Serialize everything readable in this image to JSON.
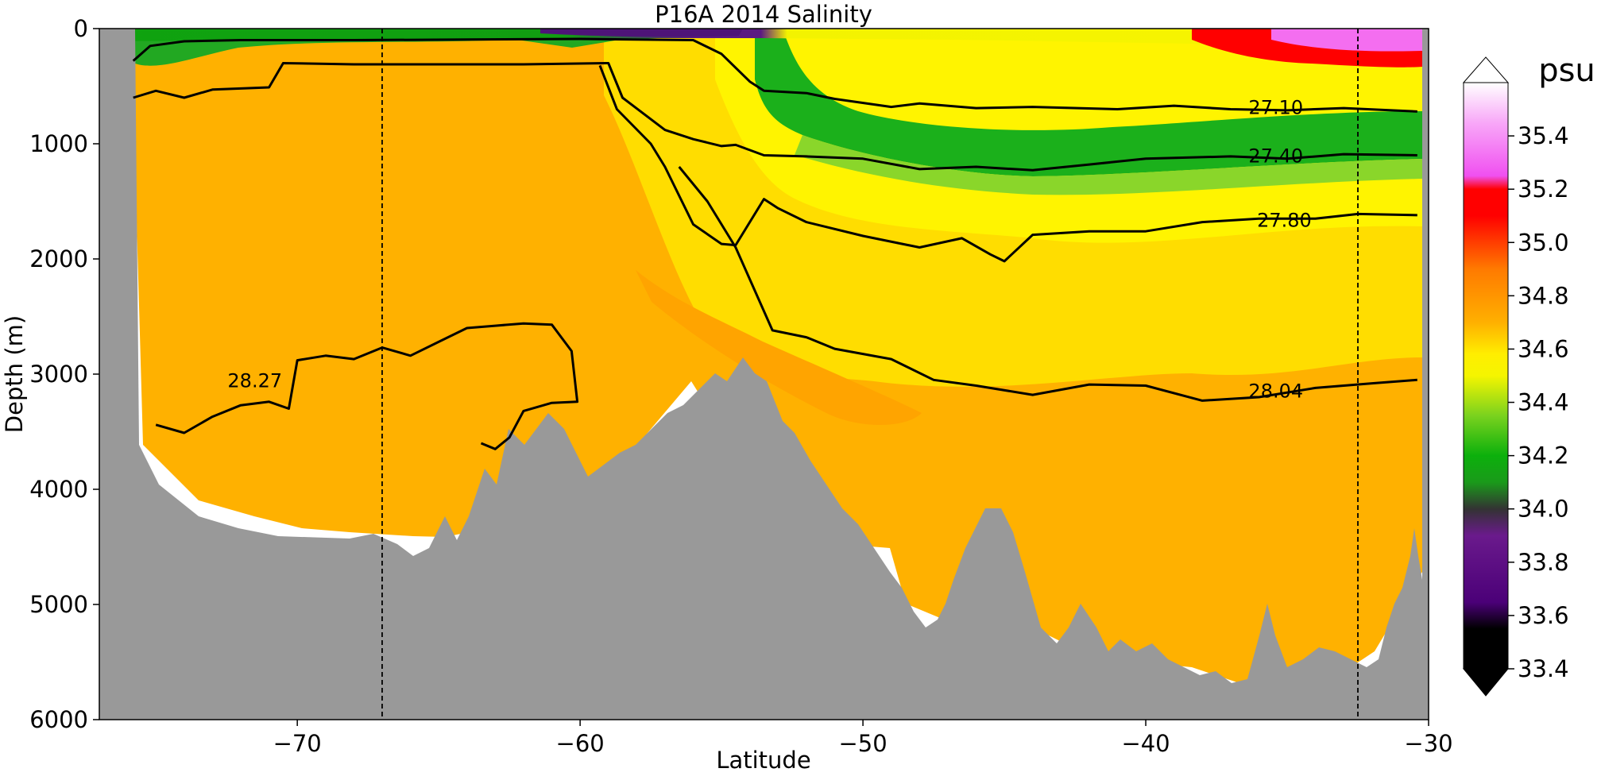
{
  "chart_data": {
    "type": "contourf",
    "title": "P16A 2014 Salinity",
    "xlabel": "Latitude",
    "ylabel": "Depth (m)",
    "xlim": [
      -77,
      -30
    ],
    "ylim": [
      6000,
      0
    ],
    "xticks": [
      -70,
      -60,
      -50,
      -40,
      -30
    ],
    "xtick_labels": [
      "−70",
      "−60",
      "−50",
      "−40",
      "−30"
    ],
    "yticks": [
      0,
      1000,
      2000,
      3000,
      4000,
      5000,
      6000
    ],
    "ytick_labels": [
      "0",
      "1000",
      "2000",
      "3000",
      "4000",
      "5000",
      "6000"
    ],
    "vertical_markers": [
      -67.0,
      -32.5
    ],
    "colorbar": {
      "label": "psu",
      "range": [
        33.4,
        35.6
      ],
      "ticks": [
        33.4,
        33.6,
        33.8,
        34.0,
        34.2,
        34.4,
        34.6,
        34.8,
        35.0,
        35.2,
        35.4
      ],
      "tick_labels": [
        "33.4",
        "33.6",
        "33.8",
        "34.0",
        "34.2",
        "34.4",
        "34.6",
        "34.8",
        "35.0",
        "35.2",
        "35.4"
      ],
      "stops": [
        {
          "v": 33.4,
          "color": "#000000"
        },
        {
          "v": 33.55,
          "color": "#000000"
        },
        {
          "v": 33.65,
          "color": "#4b0078"
        },
        {
          "v": 33.9,
          "color": "#6a1a8c"
        },
        {
          "v": 34.0,
          "color": "#333333"
        },
        {
          "v": 34.1,
          "color": "#1a9a1a"
        },
        {
          "v": 34.2,
          "color": "#0cb00c"
        },
        {
          "v": 34.35,
          "color": "#7ad21e"
        },
        {
          "v": 34.5,
          "color": "#f5f500"
        },
        {
          "v": 34.58,
          "color": "#ffee00"
        },
        {
          "v": 34.7,
          "color": "#ffb000"
        },
        {
          "v": 34.9,
          "color": "#ff7a00"
        },
        {
          "v": 35.1,
          "color": "#ff0000"
        },
        {
          "v": 35.2,
          "color": "#ff0000"
        },
        {
          "v": 35.25,
          "color": "#f050f0"
        },
        {
          "v": 35.45,
          "color": "#f8a8f8"
        },
        {
          "v": 35.6,
          "color": "#ffffff"
        }
      ]
    },
    "contours": [
      {
        "level": "27.10",
        "points": [
          [
            -75.8,
            280
          ],
          [
            -75.2,
            150
          ],
          [
            -74,
            110
          ],
          [
            -72,
            100
          ],
          [
            -68,
            100
          ],
          [
            -64,
            95
          ],
          [
            -60,
            90
          ],
          [
            -56,
            100
          ],
          [
            -55,
            220
          ],
          [
            -54,
            460
          ],
          [
            -53.5,
            540
          ],
          [
            -52,
            560
          ],
          [
            -51,
            610
          ],
          [
            -49,
            680
          ],
          [
            -48,
            650
          ],
          [
            -46,
            690
          ],
          [
            -44,
            680
          ],
          [
            -41,
            700
          ],
          [
            -39,
            670
          ],
          [
            -37,
            700
          ],
          [
            -35,
            710
          ],
          [
            -33,
            690
          ],
          [
            -30.4,
            720
          ]
        ],
        "label_at": [
          -35.4,
          680
        ]
      },
      {
        "level": "27.40",
        "points": [
          [
            -75.8,
            600
          ],
          [
            -75,
            540
          ],
          [
            -74,
            600
          ],
          [
            -73,
            530
          ],
          [
            -71,
            510
          ],
          [
            -70.5,
            300
          ],
          [
            -68,
            310
          ],
          [
            -66,
            310
          ],
          [
            -62,
            310
          ],
          [
            -59,
            300
          ],
          [
            -58.5,
            600
          ],
          [
            -57,
            880
          ],
          [
            -56,
            960
          ],
          [
            -55,
            1020
          ],
          [
            -54.5,
            1010
          ],
          [
            -53.5,
            1100
          ],
          [
            -52,
            1110
          ],
          [
            -50,
            1130
          ],
          [
            -48,
            1220
          ],
          [
            -46,
            1200
          ],
          [
            -44,
            1230
          ],
          [
            -42,
            1180
          ],
          [
            -40,
            1130
          ],
          [
            -37,
            1110
          ],
          [
            -35,
            1130
          ],
          [
            -33,
            1090
          ],
          [
            -30.4,
            1100
          ]
        ],
        "label_at": [
          -35.4,
          1100
        ]
      },
      {
        "level": "27.80",
        "points": [
          [
            -59.3,
            320
          ],
          [
            -58.7,
            700
          ],
          [
            -57.5,
            1000
          ],
          [
            -57,
            1200
          ],
          [
            -56,
            1700
          ],
          [
            -55,
            1870
          ],
          [
            -54.5,
            1880
          ],
          [
            -53.5,
            1480
          ],
          [
            -53,
            1560
          ],
          [
            -52,
            1680
          ],
          [
            -50,
            1800
          ],
          [
            -48,
            1900
          ],
          [
            -46.5,
            1820
          ],
          [
            -45.5,
            1960
          ],
          [
            -45,
            2020
          ],
          [
            -44,
            1790
          ],
          [
            -42,
            1760
          ],
          [
            -40,
            1760
          ],
          [
            -38,
            1680
          ],
          [
            -36,
            1650
          ],
          [
            -34,
            1650
          ],
          [
            -32.5,
            1610
          ],
          [
            -30.4,
            1620
          ]
        ],
        "label_at": [
          -35.1,
          1660
        ]
      },
      {
        "level": "28.04",
        "points": [
          [
            -56.5,
            1200
          ],
          [
            -55.5,
            1500
          ],
          [
            -54.5,
            1900
          ],
          [
            -53.2,
            2620
          ],
          [
            -52,
            2680
          ],
          [
            -51,
            2780
          ],
          [
            -49,
            2870
          ],
          [
            -47.5,
            3050
          ],
          [
            -46,
            3100
          ],
          [
            -44,
            3180
          ],
          [
            -42,
            3090
          ],
          [
            -40,
            3100
          ],
          [
            -38,
            3230
          ],
          [
            -36,
            3200
          ],
          [
            -34,
            3120
          ],
          [
            -32,
            3080
          ],
          [
            -30.4,
            3050
          ]
        ],
        "label_at": [
          -35.4,
          3140
        ]
      },
      {
        "level": "28.27",
        "points": [
          [
            -75,
            3440
          ],
          [
            -74,
            3510
          ],
          [
            -73,
            3370
          ],
          [
            -72,
            3270
          ],
          [
            -71,
            3240
          ],
          [
            -70.3,
            3300
          ],
          [
            -70,
            2880
          ],
          [
            -69,
            2840
          ],
          [
            -68,
            2870
          ],
          [
            -67,
            2770
          ],
          [
            -66,
            2840
          ],
          [
            -65,
            2720
          ],
          [
            -64,
            2600
          ],
          [
            -63,
            2580
          ],
          [
            -62,
            2560
          ],
          [
            -61,
            2570
          ],
          [
            -60.3,
            2800
          ],
          [
            -60.1,
            3240
          ],
          [
            -61,
            3250
          ],
          [
            -62,
            3320
          ],
          [
            -62.5,
            3550
          ],
          [
            -63,
            3650
          ],
          [
            -63.5,
            3600
          ]
        ],
        "label_at": [
          -71.5,
          3050
        ]
      }
    ]
  }
}
